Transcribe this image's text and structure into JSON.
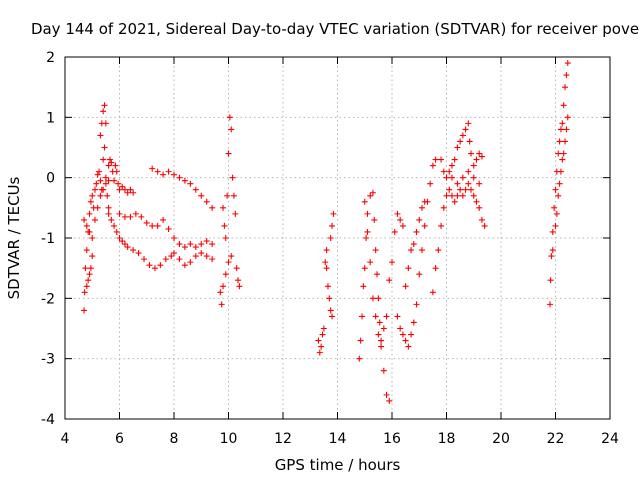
{
  "chart_data": {
    "type": "scatter",
    "title": "Day 144 of 2021, Sidereal Day-to-day VTEC variation (SDTVAR) for receiver pove",
    "xlabel": "GPS time / hours",
    "ylabel": "SDTVAR / TECUs",
    "xlim": [
      4,
      24
    ],
    "ylim": [
      -4,
      2
    ],
    "xticks": [
      4,
      6,
      8,
      10,
      12,
      14,
      16,
      18,
      20,
      22,
      24
    ],
    "yticks": [
      -4,
      -3,
      -2,
      -1,
      0,
      1,
      2
    ],
    "grid": true,
    "marker": "+",
    "marker_color": "#ff0000",
    "series": [
      {
        "name": "SDTVAR",
        "color": "#ff0000",
        "marker": "+",
        "points": [
          [
            4.7,
            -2.2
          ],
          [
            4.72,
            -1.9
          ],
          [
            4.75,
            -1.5
          ],
          [
            4.8,
            -1.2
          ],
          [
            4.85,
            -0.9
          ],
          [
            4.9,
            -0.6
          ],
          [
            4.95,
            -0.4
          ],
          [
            5.0,
            -0.3
          ],
          [
            5.05,
            -0.5
          ],
          [
            5.1,
            -0.2
          ],
          [
            5.15,
            -0.1
          ],
          [
            5.2,
            0.05
          ],
          [
            5.25,
            0.1
          ],
          [
            5.3,
            -0.05
          ],
          [
            5.35,
            -0.2
          ],
          [
            4.7,
            -0.7
          ],
          [
            4.8,
            -0.8
          ],
          [
            4.9,
            -0.9
          ],
          [
            5.0,
            -1.0
          ],
          [
            5.1,
            -0.7
          ],
          [
            5.2,
            -0.5
          ],
          [
            5.3,
            -0.3
          ],
          [
            5.4,
            -0.2
          ],
          [
            5.5,
            -0.1
          ],
          [
            5.6,
            -0.05
          ],
          [
            4.8,
            -1.8
          ],
          [
            4.85,
            -1.7
          ],
          [
            4.9,
            -1.6
          ],
          [
            4.95,
            -1.5
          ],
          [
            5.0,
            -1.3
          ],
          [
            5.3,
            0.7
          ],
          [
            5.35,
            0.9
          ],
          [
            5.4,
            1.1
          ],
          [
            5.45,
            1.2
          ],
          [
            5.5,
            0.9
          ],
          [
            5.45,
            0.5
          ],
          [
            5.4,
            0.3
          ],
          [
            5.5,
            0.0
          ],
          [
            5.55,
            -0.3
          ],
          [
            5.6,
            -0.5
          ],
          [
            5.6,
            0.2
          ],
          [
            5.65,
            0.3
          ],
          [
            5.7,
            0.25
          ],
          [
            5.75,
            0.1
          ],
          [
            5.8,
            -0.05
          ],
          [
            5.85,
            0.2
          ],
          [
            5.9,
            0.1
          ],
          [
            5.95,
            -0.1
          ],
          [
            6.0,
            -0.2
          ],
          [
            6.1,
            -0.15
          ],
          [
            6.2,
            -0.2
          ],
          [
            6.3,
            -0.25
          ],
          [
            6.4,
            -0.2
          ],
          [
            6.5,
            -0.25
          ],
          [
            5.6,
            -0.6
          ],
          [
            5.7,
            -0.7
          ],
          [
            5.8,
            -0.8
          ],
          [
            5.9,
            -0.9
          ],
          [
            6.0,
            -1.0
          ],
          [
            6.1,
            -1.05
          ],
          [
            6.2,
            -1.1
          ],
          [
            6.3,
            -1.15
          ],
          [
            6.5,
            -1.2
          ],
          [
            6.7,
            -1.25
          ],
          [
            6.9,
            -1.35
          ],
          [
            7.1,
            -1.45
          ],
          [
            7.3,
            -1.5
          ],
          [
            7.5,
            -1.45
          ],
          [
            7.7,
            -1.35
          ],
          [
            7.9,
            -1.3
          ],
          [
            8.0,
            -1.25
          ],
          [
            8.2,
            -1.35
          ],
          [
            8.4,
            -1.45
          ],
          [
            8.6,
            -1.4
          ],
          [
            8.8,
            -1.3
          ],
          [
            9.0,
            -1.25
          ],
          [
            9.2,
            -1.3
          ],
          [
            9.4,
            -1.35
          ],
          [
            6.0,
            -0.6
          ],
          [
            6.2,
            -0.65
          ],
          [
            6.4,
            -0.65
          ],
          [
            6.6,
            -0.6
          ],
          [
            6.8,
            -0.65
          ],
          [
            7.0,
            -0.75
          ],
          [
            7.2,
            -0.8
          ],
          [
            7.4,
            -0.8
          ],
          [
            7.6,
            -0.7
          ],
          [
            7.8,
            -0.85
          ],
          [
            8.0,
            -1.0
          ],
          [
            8.2,
            -1.1
          ],
          [
            8.4,
            -1.15
          ],
          [
            8.6,
            -1.1
          ],
          [
            8.8,
            -1.15
          ],
          [
            9.0,
            -1.1
          ],
          [
            9.2,
            -1.05
          ],
          [
            9.4,
            -1.1
          ],
          [
            7.2,
            0.15
          ],
          [
            7.4,
            0.1
          ],
          [
            7.6,
            0.05
          ],
          [
            7.8,
            0.1
          ],
          [
            8.0,
            0.05
          ],
          [
            8.2,
            0.0
          ],
          [
            8.4,
            -0.05
          ],
          [
            8.6,
            -0.1
          ],
          [
            8.8,
            -0.2
          ],
          [
            9.0,
            -0.3
          ],
          [
            9.2,
            -0.4
          ],
          [
            9.4,
            -0.5
          ],
          [
            9.7,
            -1.9
          ],
          [
            9.75,
            -2.1
          ],
          [
            9.8,
            -1.8
          ],
          [
            9.8,
            -0.5
          ],
          [
            9.85,
            -0.8
          ],
          [
            9.9,
            -1.0
          ],
          [
            9.95,
            -0.3
          ],
          [
            10.0,
            0.4
          ],
          [
            10.05,
            1.0
          ],
          [
            10.1,
            0.8
          ],
          [
            10.15,
            0.0
          ],
          [
            10.2,
            -0.3
          ],
          [
            10.25,
            -0.6
          ],
          [
            10.3,
            -1.5
          ],
          [
            10.35,
            -1.7
          ],
          [
            10.4,
            -1.8
          ],
          [
            9.9,
            -1.6
          ],
          [
            10.0,
            -1.4
          ],
          [
            10.1,
            -1.3
          ],
          [
            13.3,
            -2.7
          ],
          [
            13.35,
            -2.9
          ],
          [
            13.4,
            -2.8
          ],
          [
            13.45,
            -2.6
          ],
          [
            13.5,
            -2.5
          ],
          [
            13.55,
            -1.4
          ],
          [
            13.6,
            -1.5
          ],
          [
            13.65,
            -1.8
          ],
          [
            13.7,
            -2.0
          ],
          [
            13.75,
            -2.2
          ],
          [
            13.8,
            -2.3
          ],
          [
            13.75,
            -1.0
          ],
          [
            13.8,
            -0.8
          ],
          [
            13.85,
            -0.6
          ],
          [
            13.6,
            -1.2
          ],
          [
            14.8,
            -3.0
          ],
          [
            14.85,
            -2.7
          ],
          [
            14.9,
            -2.3
          ],
          [
            14.95,
            -1.8
          ],
          [
            15.0,
            -1.5
          ],
          [
            15.05,
            -1.0
          ],
          [
            15.1,
            -0.6
          ],
          [
            15.2,
            -0.3
          ],
          [
            15.3,
            -0.25
          ],
          [
            15.35,
            -0.7
          ],
          [
            15.4,
            -1.2
          ],
          [
            15.45,
            -1.6
          ],
          [
            15.5,
            -2.0
          ],
          [
            15.55,
            -2.4
          ],
          [
            15.6,
            -2.8
          ],
          [
            15.7,
            -3.2
          ],
          [
            15.8,
            -3.6
          ],
          [
            15.9,
            -3.7
          ],
          [
            15.0,
            -0.4
          ],
          [
            15.1,
            -0.9
          ],
          [
            15.2,
            -1.4
          ],
          [
            15.3,
            -2.0
          ],
          [
            15.4,
            -2.3
          ],
          [
            15.5,
            -2.6
          ],
          [
            15.6,
            -2.7
          ],
          [
            15.7,
            -2.5
          ],
          [
            15.8,
            -2.3
          ],
          [
            15.9,
            -1.7
          ],
          [
            16.0,
            -1.4
          ],
          [
            16.1,
            -0.9
          ],
          [
            16.2,
            -0.6
          ],
          [
            16.3,
            -0.7
          ],
          [
            16.4,
            -0.8
          ],
          [
            16.2,
            -2.3
          ],
          [
            16.3,
            -2.5
          ],
          [
            16.4,
            -2.6
          ],
          [
            16.5,
            -2.7
          ],
          [
            16.6,
            -2.8
          ],
          [
            16.7,
            -2.6
          ],
          [
            16.8,
            -2.4
          ],
          [
            16.9,
            -2.1
          ],
          [
            17.0,
            -1.6
          ],
          [
            17.1,
            -1.2
          ],
          [
            17.2,
            -0.8
          ],
          [
            17.3,
            -0.4
          ],
          [
            17.4,
            -0.1
          ],
          [
            17.5,
            0.2
          ],
          [
            17.6,
            0.3
          ],
          [
            16.5,
            -1.8
          ],
          [
            16.6,
            -1.5
          ],
          [
            16.7,
            -1.2
          ],
          [
            16.8,
            -1.1
          ],
          [
            16.9,
            -0.9
          ],
          [
            17.0,
            -0.7
          ],
          [
            17.1,
            -0.5
          ],
          [
            17.2,
            -0.4
          ],
          [
            17.5,
            -1.9
          ],
          [
            17.6,
            -1.5
          ],
          [
            17.7,
            -1.2
          ],
          [
            17.8,
            -0.8
          ],
          [
            17.9,
            -0.5
          ],
          [
            18.0,
            -0.3
          ],
          [
            18.1,
            -0.2
          ],
          [
            18.2,
            -0.3
          ],
          [
            18.3,
            -0.4
          ],
          [
            18.4,
            -0.3
          ],
          [
            18.5,
            -0.2
          ],
          [
            18.6,
            -0.3
          ],
          [
            18.7,
            -0.2
          ],
          [
            18.8,
            -0.1
          ],
          [
            18.9,
            -0.2
          ],
          [
            19.0,
            -0.3
          ],
          [
            19.1,
            -0.4
          ],
          [
            19.2,
            -0.5
          ],
          [
            19.3,
            -0.7
          ],
          [
            19.4,
            -0.8
          ],
          [
            17.8,
            0.3
          ],
          [
            17.9,
            0.1
          ],
          [
            18.0,
            0.0
          ],
          [
            18.1,
            0.1
          ],
          [
            18.2,
            0.2
          ],
          [
            18.3,
            0.3
          ],
          [
            18.4,
            0.5
          ],
          [
            18.5,
            0.6
          ],
          [
            18.6,
            0.7
          ],
          [
            18.7,
            0.8
          ],
          [
            18.8,
            0.9
          ],
          [
            18.85,
            0.6
          ],
          [
            18.9,
            0.4
          ],
          [
            19.0,
            0.2
          ],
          [
            19.1,
            0.3
          ],
          [
            19.2,
            0.4
          ],
          [
            19.3,
            0.35
          ],
          [
            18.2,
            0.0
          ],
          [
            18.4,
            -0.1
          ],
          [
            18.6,
            0.0
          ],
          [
            18.8,
            0.1
          ],
          [
            19.0,
            0.0
          ],
          [
            19.2,
            -0.1
          ],
          [
            21.8,
            -2.1
          ],
          [
            21.82,
            -1.7
          ],
          [
            21.85,
            -1.3
          ],
          [
            21.9,
            -0.9
          ],
          [
            21.95,
            -0.5
          ],
          [
            22.0,
            -0.2
          ],
          [
            22.05,
            0.1
          ],
          [
            22.1,
            0.4
          ],
          [
            22.15,
            0.6
          ],
          [
            22.2,
            0.8
          ],
          [
            22.25,
            0.9
          ],
          [
            22.3,
            1.2
          ],
          [
            22.35,
            1.5
          ],
          [
            22.4,
            1.7
          ],
          [
            22.45,
            1.9
          ],
          [
            21.9,
            -1.2
          ],
          [
            22.0,
            -0.8
          ],
          [
            22.05,
            -0.6
          ],
          [
            22.1,
            -0.3
          ],
          [
            22.15,
            -0.1
          ],
          [
            22.2,
            0.1
          ],
          [
            22.25,
            0.3
          ],
          [
            22.3,
            0.4
          ],
          [
            22.35,
            0.6
          ],
          [
            22.4,
            0.8
          ],
          [
            22.45,
            1.0
          ]
        ]
      }
    ]
  }
}
